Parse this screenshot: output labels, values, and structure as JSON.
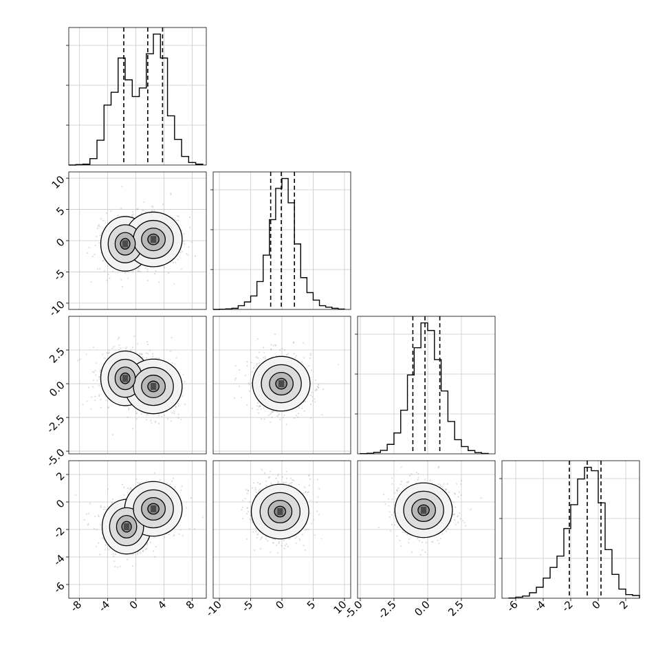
{
  "figure": {
    "type": "corner-plot",
    "variables": 4,
    "grid_lines": true
  },
  "ticks": {
    "x": [
      [
        "-8",
        "-4",
        "0",
        "4",
        "8"
      ],
      [
        "-10",
        "-5",
        "0",
        "5",
        "10"
      ],
      [
        "-5.0",
        "-2.5",
        "0.0",
        "2.5"
      ],
      [
        "-6",
        "-4",
        "-2",
        "0",
        "2"
      ]
    ],
    "y": [
      [],
      [
        "10",
        "5",
        "0",
        "-5",
        "-10"
      ],
      [
        "2.5",
        "0.0",
        "-2.5",
        "-5.0"
      ],
      [
        "2",
        "0",
        "-2",
        "-4",
        "-6"
      ]
    ]
  },
  "chart_data": [
    {
      "type": "histogram",
      "panel": "diag-1",
      "xlim": [
        -9.5,
        10
      ],
      "bins": [
        -9.5,
        -8.5,
        -7.5,
        -6.5,
        -5.5,
        -4.5,
        -3.5,
        -2.5,
        -1.5,
        -0.5,
        0.5,
        1.5,
        2.5,
        3.5,
        4.5,
        5.5,
        6.5,
        7.5,
        8.5,
        9.5
      ],
      "counts": [
        0,
        1,
        2,
        15,
        58,
        140,
        170,
        250,
        199,
        160,
        180,
        260,
        306,
        250,
        115,
        60,
        20,
        6,
        2
      ],
      "quantiles": [
        -1.7,
        1.7,
        3.8
      ]
    },
    {
      "type": "histogram",
      "panel": "diag-2",
      "xlim": [
        -11,
        11
      ],
      "bins": [
        -11,
        -10,
        -9,
        -8,
        -7,
        -6,
        -5,
        -4,
        -3,
        -2,
        -1,
        0,
        1,
        2,
        3,
        4,
        5,
        6,
        7,
        8,
        9,
        10
      ],
      "counts": [
        0,
        1,
        3,
        6,
        20,
        40,
        72,
        149,
        290,
        480,
        647,
        700,
        570,
        350,
        170,
        90,
        50,
        20,
        12,
        6,
        2
      ],
      "quantiles": [
        -1.8,
        -0.1,
        2.0
      ]
    },
    {
      "type": "histogram",
      "panel": "diag-3",
      "xlim": [
        -5.2,
        5
      ],
      "bins": [
        -5,
        -4.5,
        -4,
        -3.5,
        -3,
        -2.5,
        -2,
        -1.5,
        -1,
        -0.5,
        0,
        0.5,
        1,
        1.5,
        2,
        2.5,
        3,
        3.5,
        4,
        4.5
      ],
      "counts": [
        1,
        3,
        8,
        19,
        52,
        115,
        240,
        434,
        584,
        721,
        679,
        519,
        346,
        178,
        78,
        40,
        18,
        7,
        2
      ],
      "quantiles": [
        -1.1,
        -0.2,
        0.9
      ]
    },
    {
      "type": "histogram",
      "panel": "diag-4",
      "xlim": [
        -7,
        3
      ],
      "bins": [
        -6.5,
        -6,
        -5.5,
        -5,
        -4.5,
        -4,
        -3.5,
        -3,
        -2.5,
        -2,
        -1.5,
        -1,
        -0.5,
        0,
        0.5,
        1,
        1.5,
        2,
        2.5,
        3
      ],
      "counts": [
        1,
        6,
        12,
        30,
        60,
        110,
        168,
        230,
        380,
        510,
        650,
        714,
        695,
        520,
        265,
        130,
        50,
        20,
        15
      ],
      "quantiles": [
        -2.1,
        -0.8,
        0.2
      ]
    },
    {
      "type": "2d-density",
      "panel": "x1-x2",
      "xlim": [
        -9.5,
        10
      ],
      "ylim": [
        -11,
        11
      ],
      "modes": [
        {
          "x": -1.5,
          "y": -0.5
        },
        {
          "x": 2.5,
          "y": 0.2
        }
      ]
    },
    {
      "type": "2d-density",
      "panel": "x1-x3",
      "xlim": [
        -9.5,
        10
      ],
      "ylim": [
        -5.2,
        5
      ],
      "modes": [
        {
          "x": -1.5,
          "y": 0.4
        },
        {
          "x": 2.5,
          "y": -0.2
        }
      ]
    },
    {
      "type": "2d-density",
      "panel": "x1-x4",
      "xlim": [
        -9.5,
        10
      ],
      "ylim": [
        -7,
        3
      ],
      "modes": [
        {
          "x": -1.3,
          "y": -1.8
        },
        {
          "x": 2.5,
          "y": -0.5
        }
      ]
    },
    {
      "type": "2d-density",
      "panel": "x2-x3",
      "xlim": [
        -11,
        11
      ],
      "ylim": [
        -5.2,
        5
      ],
      "modes": [
        {
          "x": -0.1,
          "y": 0.0
        }
      ]
    },
    {
      "type": "2d-density",
      "panel": "x2-x4",
      "xlim": [
        -11,
        11
      ],
      "ylim": [
        -7,
        3
      ],
      "modes": [
        {
          "x": -0.3,
          "y": -0.7
        }
      ]
    },
    {
      "type": "2d-density",
      "panel": "x3-x4",
      "xlim": [
        -5.2,
        5
      ],
      "ylim": [
        -7,
        3
      ],
      "modes": [
        {
          "x": -0.3,
          "y": -0.6
        }
      ]
    }
  ]
}
